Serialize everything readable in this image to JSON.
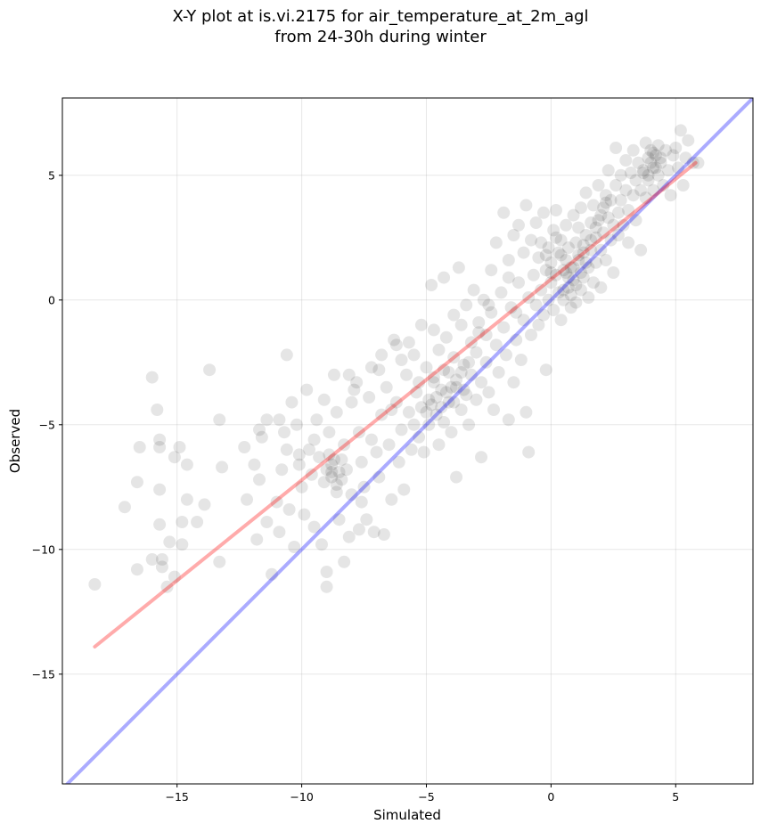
{
  "chart_data": {
    "type": "scatter",
    "title_line1": "X-Y plot at is.vi.2175 for air_temperature_at_2m_agl",
    "title_line2": "from 24-30h during winter",
    "xlabel": "Simulated",
    "ylabel": "Observed",
    "xlim": [
      -19.6,
      8.1
    ],
    "ylim": [
      -19.4,
      8.1
    ],
    "xticks": [
      -15,
      -10,
      -5,
      0,
      5
    ],
    "yticks": [
      -15,
      -10,
      -5,
      0,
      5
    ],
    "xtick_labels": [
      "−15",
      "−10",
      "−5",
      "0",
      "5"
    ],
    "ytick_labels": [
      "−15",
      "−10",
      "−5",
      "0",
      "5"
    ],
    "grid": true,
    "point_color": "#000000",
    "point_alpha": 0.1,
    "lines": [
      {
        "role": "identity",
        "color": "#0000ff",
        "alpha": 0.33,
        "x": [
          -19.6,
          8.1
        ],
        "y": [
          -19.6,
          8.1
        ]
      },
      {
        "role": "fit",
        "color": "#ff0000",
        "alpha": 0.33,
        "x": [
          -18.3,
          5.8
        ],
        "y": [
          -13.9,
          5.5
        ]
      }
    ],
    "points": [
      [
        -18.3,
        -11.4
      ],
      [
        -17.1,
        -8.3
      ],
      [
        -16.6,
        -7.3
      ],
      [
        -16.6,
        -10.8
      ],
      [
        -16.5,
        -5.9
      ],
      [
        -16.0,
        -3.1
      ],
      [
        -16.0,
        -10.4
      ],
      [
        -15.8,
        -4.4
      ],
      [
        -15.7,
        -5.6
      ],
      [
        -15.7,
        -5.9
      ],
      [
        -15.7,
        -7.6
      ],
      [
        -15.6,
        -10.7
      ],
      [
        -15.6,
        -10.4
      ],
      [
        -15.7,
        -9.0
      ],
      [
        -15.4,
        -11.5
      ],
      [
        -15.3,
        -9.7
      ],
      [
        -15.1,
        -11.1
      ],
      [
        -15.1,
        -6.3
      ],
      [
        -14.9,
        -5.9
      ],
      [
        -14.8,
        -8.9
      ],
      [
        -14.8,
        -9.8
      ],
      [
        -14.6,
        -6.6
      ],
      [
        -14.6,
        -8.0
      ],
      [
        -14.2,
        -8.9
      ],
      [
        -13.9,
        -8.2
      ],
      [
        -13.7,
        -2.8
      ],
      [
        -13.3,
        -4.8
      ],
      [
        -13.2,
        -6.7
      ],
      [
        -13.3,
        -10.5
      ],
      [
        -12.3,
        -5.9
      ],
      [
        -12.2,
        -8.0
      ],
      [
        -11.9,
        -6.6
      ],
      [
        -11.7,
        -7.2
      ],
      [
        -11.8,
        -9.6
      ],
      [
        -11.7,
        -5.2
      ],
      [
        -11.6,
        -5.5
      ],
      [
        -11.4,
        -4.8
      ],
      [
        -11.4,
        -8.9
      ],
      [
        -11.2,
        -11.0
      ],
      [
        -11.0,
        -8.1
      ],
      [
        -10.9,
        -9.3
      ],
      [
        -10.8,
        -6.8
      ],
      [
        -10.7,
        -5.3
      ],
      [
        -10.6,
        -2.2
      ],
      [
        -10.6,
        -6.0
      ],
      [
        -10.5,
        -8.4
      ],
      [
        -10.4,
        -4.1
      ],
      [
        -10.3,
        -9.9
      ],
      [
        -10.2,
        -5.0
      ],
      [
        -10.1,
        -6.6
      ],
      [
        -10.0,
        -7.5
      ],
      [
        -9.9,
        -8.6
      ],
      [
        -9.8,
        -3.6
      ],
      [
        -9.7,
        -6.0
      ],
      [
        -9.6,
        -7.0
      ],
      [
        -9.5,
        -9.1
      ],
      [
        -9.4,
        -4.8
      ],
      [
        -9.3,
        -6.3
      ],
      [
        -9.2,
        -9.8
      ],
      [
        -9.1,
        -4.0
      ],
      [
        -9.0,
        -10.9
      ],
      [
        -9.0,
        -11.5
      ],
      [
        -8.9,
        -5.3
      ],
      [
        -8.8,
        -6.6
      ],
      [
        -8.8,
        -6.9
      ],
      [
        -8.7,
        -3.0
      ],
      [
        -8.6,
        -4.5
      ],
      [
        -8.6,
        -7.7
      ],
      [
        -8.5,
        -8.8
      ],
      [
        -8.4,
        -6.4
      ],
      [
        -8.4,
        -7.2
      ],
      [
        -8.3,
        -10.5
      ],
      [
        -8.3,
        -5.8
      ],
      [
        -8.2,
        -6.8
      ],
      [
        -8.1,
        -3.0
      ],
      [
        -8.0,
        -4.1
      ],
      [
        -8.0,
        -7.8
      ],
      [
        -7.8,
        -3.3
      ],
      [
        -7.7,
        -5.3
      ],
      [
        -7.7,
        -9.2
      ],
      [
        -7.6,
        -6.5
      ],
      [
        -7.5,
        -7.5
      ],
      [
        -7.4,
        -8.8
      ],
      [
        -7.3,
        -3.9
      ],
      [
        -7.2,
        -5.6
      ],
      [
        -7.1,
        -9.3
      ],
      [
        -7.0,
        -6.1
      ],
      [
        -6.9,
        -2.8
      ],
      [
        -6.9,
        -7.1
      ],
      [
        -6.8,
        -4.6
      ],
      [
        -6.7,
        -9.4
      ],
      [
        -6.6,
        -3.5
      ],
      [
        -6.5,
        -5.8
      ],
      [
        -6.4,
        -8.0
      ],
      [
        -6.3,
        -1.6
      ],
      [
        -6.2,
        -4.1
      ],
      [
        -6.1,
        -6.5
      ],
      [
        -6.0,
        -2.4
      ],
      [
        -6.0,
        -5.2
      ],
      [
        -5.9,
        -7.6
      ],
      [
        -5.8,
        -3.0
      ],
      [
        -5.7,
        -1.7
      ],
      [
        -5.7,
        -4.5
      ],
      [
        -5.6,
        -6.0
      ],
      [
        -5.5,
        -2.2
      ],
      [
        -5.4,
        -3.7
      ],
      [
        -5.3,
        -5.5
      ],
      [
        -5.2,
        -1.0
      ],
      [
        -5.2,
        -4.3
      ],
      [
        -5.1,
        -6.1
      ],
      [
        -5.0,
        -2.7
      ],
      [
        -4.9,
        -4.0
      ],
      [
        -4.9,
        -5.0
      ],
      [
        -4.8,
        0.6
      ],
      [
        -4.7,
        -1.2
      ],
      [
        -4.7,
        -3.3
      ],
      [
        -4.6,
        -4.6
      ],
      [
        -4.5,
        -5.8
      ],
      [
        -4.5,
        -2.0
      ],
      [
        -4.4,
        -3.6
      ],
      [
        -4.3,
        0.9
      ],
      [
        -4.3,
        -4.9
      ],
      [
        -4.2,
        -1.5
      ],
      [
        -4.1,
        -2.9
      ],
      [
        -4.1,
        -4.1
      ],
      [
        -4.0,
        -5.3
      ],
      [
        -3.9,
        -0.6
      ],
      [
        -3.9,
        -2.3
      ],
      [
        -3.8,
        -3.5
      ],
      [
        -3.8,
        -7.1
      ],
      [
        -3.7,
        1.3
      ],
      [
        -3.6,
        -4.4
      ],
      [
        -3.6,
        -1.0
      ],
      [
        -3.5,
        -2.6
      ],
      [
        -3.4,
        -3.8
      ],
      [
        -3.4,
        -0.2
      ],
      [
        -3.3,
        -5.0
      ],
      [
        -3.2,
        -1.7
      ],
      [
        -3.2,
        -3.0
      ],
      [
        -3.1,
        0.4
      ],
      [
        -3.0,
        -4.0
      ],
      [
        -3.0,
        -2.1
      ],
      [
        -2.9,
        -0.9
      ],
      [
        -2.8,
        -3.3
      ],
      [
        -2.8,
        -6.3
      ],
      [
        -2.7,
        0.0
      ],
      [
        -2.6,
        -1.4
      ],
      [
        -2.6,
        -2.5
      ],
      [
        -2.5,
        -3.7
      ],
      [
        -2.4,
        1.2
      ],
      [
        -2.4,
        -0.5
      ],
      [
        -2.3,
        -4.4
      ],
      [
        -2.2,
        -1.8
      ],
      [
        -2.2,
        2.3
      ],
      [
        -2.1,
        -2.9
      ],
      [
        -2.0,
        0.3
      ],
      [
        -1.9,
        -1.1
      ],
      [
        -1.9,
        3.5
      ],
      [
        -1.8,
        -2.2
      ],
      [
        -1.7,
        -4.8
      ],
      [
        -1.7,
        1.6
      ],
      [
        -1.6,
        -0.3
      ],
      [
        -1.5,
        -3.3
      ],
      [
        -1.5,
        2.6
      ],
      [
        -1.4,
        -1.6
      ],
      [
        -1.3,
        0.7
      ],
      [
        -1.3,
        3.0
      ],
      [
        -1.2,
        -2.4
      ],
      [
        -1.1,
        1.9
      ],
      [
        -1.1,
        -0.8
      ],
      [
        -1.0,
        -4.5
      ],
      [
        -1.0,
        3.8
      ],
      [
        -0.9,
        -6.1
      ],
      [
        -0.9,
        0.1
      ],
      [
        -0.8,
        2.4
      ],
      [
        -0.8,
        -1.4
      ],
      [
        -0.7,
        1.0
      ],
      [
        -0.6,
        -0.2
      ],
      [
        -0.6,
        3.1
      ],
      [
        -0.5,
        1.7
      ],
      [
        -0.5,
        -1.0
      ],
      [
        -0.4,
        0.4
      ],
      [
        -0.4,
        2.3
      ],
      [
        -0.3,
        -0.6
      ],
      [
        -0.3,
        3.5
      ],
      [
        -0.2,
        1.2
      ],
      [
        -0.2,
        -2.8
      ],
      [
        -0.1,
        0.0
      ],
      [
        -0.1,
        2.1
      ],
      [
        0.0,
        0.7
      ],
      [
        0.0,
        1.5
      ],
      [
        0.1,
        -0.4
      ],
      [
        0.1,
        2.8
      ],
      [
        0.2,
        1.0
      ],
      [
        0.2,
        3.6
      ],
      [
        0.3,
        0.3
      ],
      [
        0.3,
        1.9
      ],
      [
        0.4,
        -0.8
      ],
      [
        0.4,
        2.4
      ],
      [
        0.5,
        1.2
      ],
      [
        0.5,
        0.0
      ],
      [
        0.6,
        3.0
      ],
      [
        0.6,
        1.6
      ],
      [
        0.7,
        0.5
      ],
      [
        0.7,
        2.1
      ],
      [
        0.8,
        -0.3
      ],
      [
        0.8,
        1.3
      ],
      [
        0.9,
        3.4
      ],
      [
        0.9,
        0.8
      ],
      [
        1.0,
        2.3
      ],
      [
        1.0,
        -0.1
      ],
      [
        1.1,
        1.6
      ],
      [
        1.1,
        2.9
      ],
      [
        1.2,
        0.4
      ],
      [
        1.2,
        3.7
      ],
      [
        1.3,
        1.9
      ],
      [
        1.3,
        0.9
      ],
      [
        1.4,
        2.6
      ],
      [
        1.4,
        4.3
      ],
      [
        1.5,
        1.3
      ],
      [
        1.5,
        0.1
      ],
      [
        1.6,
        3.1
      ],
      [
        1.6,
        2.0
      ],
      [
        1.7,
        0.7
      ],
      [
        1.7,
        3.8
      ],
      [
        1.8,
        2.5
      ],
      [
        1.8,
        1.5
      ],
      [
        1.9,
        4.6
      ],
      [
        1.9,
        3.2
      ],
      [
        2.0,
        2.0
      ],
      [
        2.0,
        0.5
      ],
      [
        2.1,
        3.7
      ],
      [
        2.1,
        2.7
      ],
      [
        2.2,
        4.2
      ],
      [
        2.2,
        1.6
      ],
      [
        2.3,
        3.3
      ],
      [
        2.3,
        5.2
      ],
      [
        2.4,
        2.4
      ],
      [
        2.4,
        4.0
      ],
      [
        2.5,
        3.0
      ],
      [
        2.5,
        1.1
      ],
      [
        2.6,
        4.6
      ],
      [
        2.6,
        6.1
      ],
      [
        2.7,
        3.5
      ],
      [
        2.7,
        2.6
      ],
      [
        2.8,
        5.0
      ],
      [
        2.8,
        4.0
      ],
      [
        2.9,
        3.0
      ],
      [
        3.0,
        5.6
      ],
      [
        3.0,
        4.4
      ],
      [
        3.1,
        2.3
      ],
      [
        3.1,
        3.6
      ],
      [
        3.2,
        5.1
      ],
      [
        3.3,
        4.2
      ],
      [
        3.3,
        6.0
      ],
      [
        3.4,
        3.2
      ],
      [
        3.4,
        4.8
      ],
      [
        3.5,
        5.5
      ],
      [
        3.6,
        4.4
      ],
      [
        3.6,
        2.0
      ],
      [
        3.7,
        5.2
      ],
      [
        3.8,
        6.3
      ],
      [
        3.8,
        4.1
      ],
      [
        3.9,
        5.7
      ],
      [
        3.9,
        4.8
      ],
      [
        4.0,
        6.0
      ],
      [
        4.1,
        5.3
      ],
      [
        4.1,
        4.4
      ],
      [
        4.2,
        5.8
      ],
      [
        4.3,
        6.2
      ],
      [
        4.3,
        5.0
      ],
      [
        4.4,
        5.5
      ],
      [
        4.5,
        4.6
      ],
      [
        4.6,
        6.0
      ],
      [
        4.7,
        5.2
      ],
      [
        4.8,
        4.2
      ],
      [
        4.9,
        5.8
      ],
      [
        5.0,
        6.1
      ],
      [
        5.1,
        5.3
      ],
      [
        5.2,
        6.8
      ],
      [
        5.3,
        4.6
      ],
      [
        5.4,
        5.7
      ],
      [
        5.5,
        6.4
      ],
      [
        5.7,
        5.5
      ],
      [
        5.9,
        5.5
      ],
      [
        -9.0,
        -6.8
      ],
      [
        -8.8,
        -7.1
      ],
      [
        -8.7,
        -6.4
      ],
      [
        -8.5,
        -6.9
      ],
      [
        -9.1,
        -7.3
      ],
      [
        -8.9,
        -6.2
      ],
      [
        -8.6,
        -7.4
      ],
      [
        -5.0,
        -4.5
      ],
      [
        -4.8,
        -4.2
      ],
      [
        -4.6,
        -3.9
      ],
      [
        -4.4,
        -4.3
      ],
      [
        -4.2,
        -3.7
      ],
      [
        -4.0,
        -3.5
      ],
      [
        -3.8,
        -3.2
      ],
      [
        -3.6,
        -2.9
      ],
      [
        -4.7,
        -3.1
      ],
      [
        -4.3,
        -2.8
      ],
      [
        -3.9,
        -4.1
      ],
      [
        -3.5,
        -3.6
      ],
      [
        -3.3,
        -2.5
      ],
      [
        0.5,
        0.4
      ],
      [
        0.7,
        0.9
      ],
      [
        0.9,
        1.3
      ],
      [
        1.1,
        1.8
      ],
      [
        1.3,
        2.2
      ],
      [
        0.6,
        1.1
      ],
      [
        0.8,
        0.2
      ],
      [
        1.0,
        0.6
      ],
      [
        1.2,
        1.1
      ],
      [
        1.4,
        1.5
      ],
      [
        1.6,
        2.4
      ],
      [
        0.4,
        1.8
      ],
      [
        0.2,
        2.5
      ],
      [
        -0.2,
        1.8
      ],
      [
        0.0,
        1.1
      ],
      [
        1.8,
        2.9
      ],
      [
        2.0,
        3.4
      ],
      [
        2.2,
        3.9
      ],
      [
        3.9,
        5.0
      ],
      [
        4.0,
        5.5
      ],
      [
        4.2,
        5.3
      ],
      [
        4.4,
        5.7
      ],
      [
        4.1,
        5.9
      ],
      [
        3.7,
        5.1
      ],
      [
        -6.2,
        -1.8
      ],
      [
        -6.8,
        -2.2
      ],
      [
        -7.2,
        -2.7
      ],
      [
        -7.9,
        -3.6
      ],
      [
        -10.9,
        -4.8
      ],
      [
        -10.1,
        -6.2
      ],
      [
        -9.5,
        -5.6
      ],
      [
        -8.1,
        -9.5
      ],
      [
        -7.6,
        -8.1
      ],
      [
        -6.4,
        -4.4
      ],
      [
        -5.5,
        -5.0
      ],
      [
        -5.3,
        -3.3
      ],
      [
        -2.9,
        -1.3
      ],
      [
        -2.5,
        -0.2
      ],
      [
        -1.7,
        0.9
      ],
      [
        -1.4,
        -0.5
      ]
    ]
  }
}
